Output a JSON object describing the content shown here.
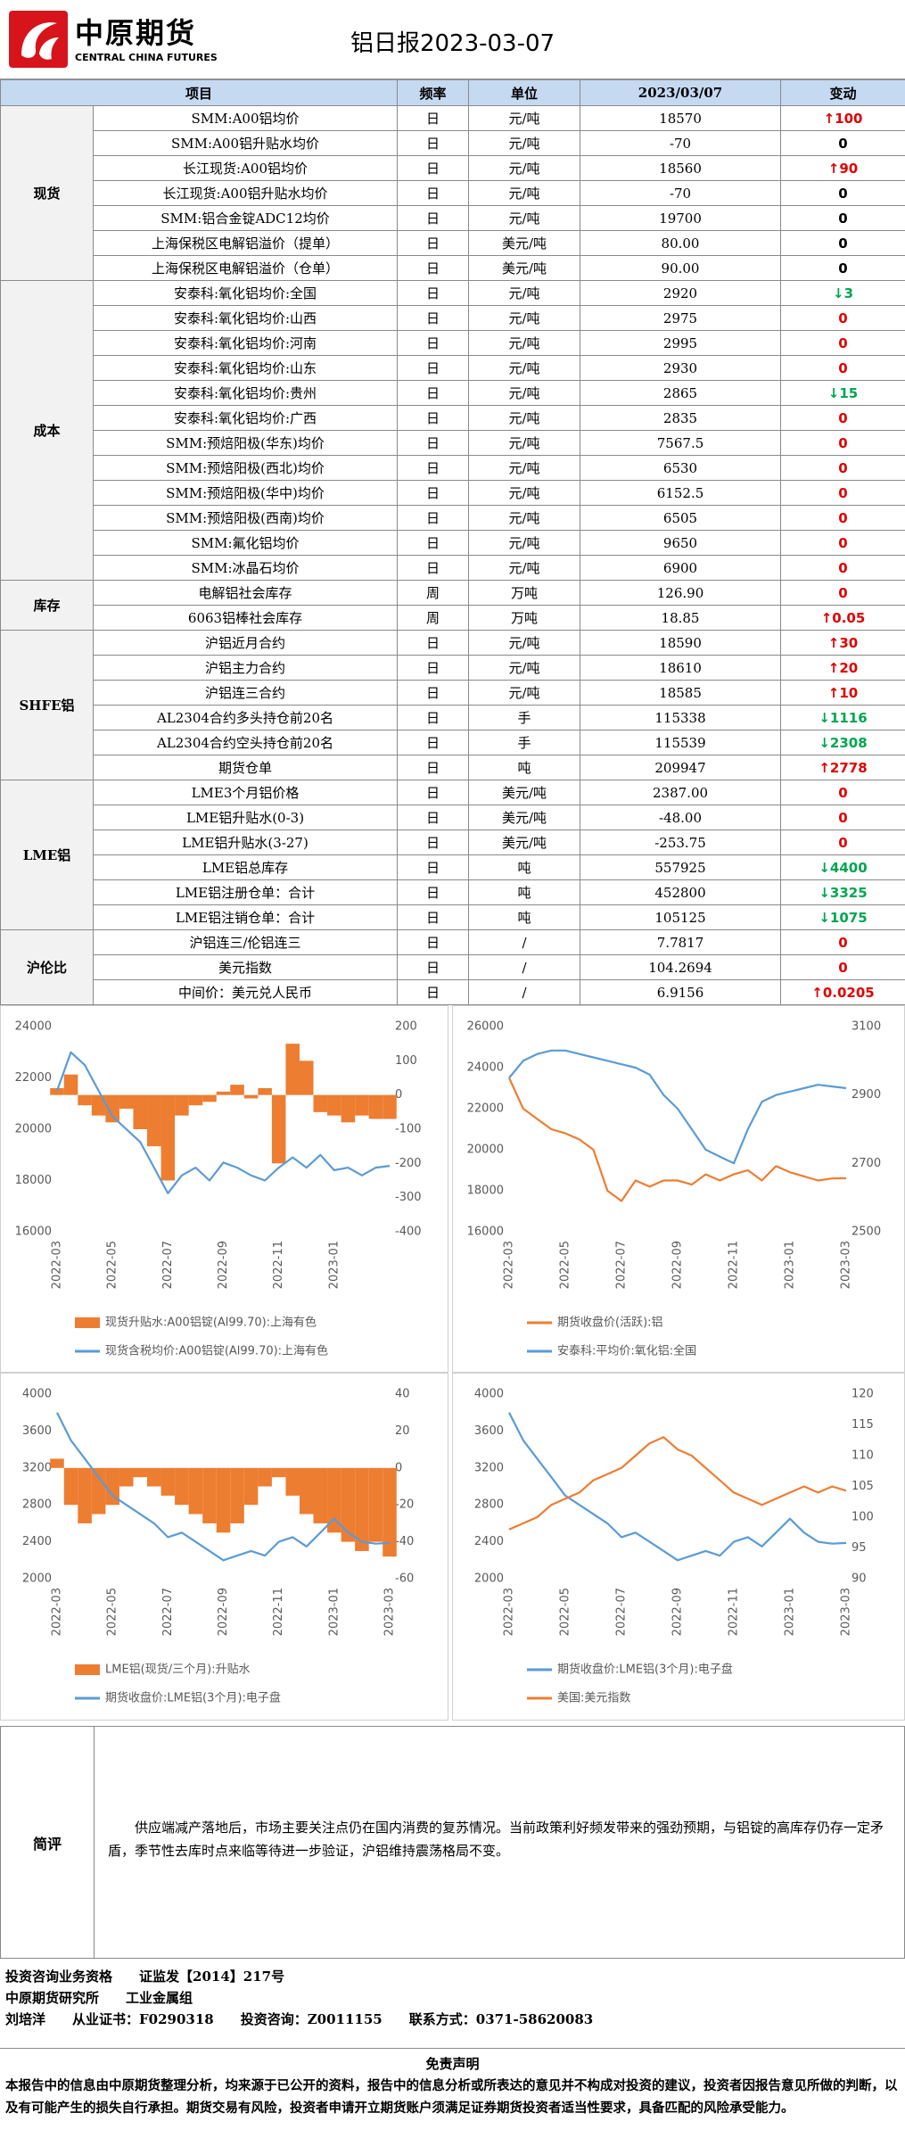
{
  "header": {
    "logo_cn": "中原期货",
    "logo_en": "CENTRAL CHINA FUTURES",
    "title": "铝日报2023-03-07"
  },
  "table": {
    "columns": [
      "项目",
      "频率",
      "单位",
      "2023/03/07",
      "变动"
    ],
    "groups": [
      {
        "name": "现货",
        "rows": [
          {
            "item": "SMM:A00铝均价",
            "freq": "日",
            "unit": "元/吨",
            "value": "18570",
            "change": "↑100",
            "change_color": "#e00000"
          },
          {
            "item": "SMM:A00铝升贴水均价",
            "freq": "日",
            "unit": "元/吨",
            "value": "-70",
            "change": "0",
            "change_color": "#000000"
          },
          {
            "item": "长江现货:A00铝均价",
            "freq": "日",
            "unit": "元/吨",
            "value": "18560",
            "change": "↑90",
            "change_color": "#e00000"
          },
          {
            "item": "长江现货:A00铝升贴水均价",
            "freq": "日",
            "unit": "元/吨",
            "value": "-70",
            "change": "0",
            "change_color": "#000000"
          },
          {
            "item": "SMM:铝合金锭ADC12均价",
            "freq": "日",
            "unit": "元/吨",
            "value": "19700",
            "change": "0",
            "change_color": "#000000"
          },
          {
            "item": "上海保税区电解铝溢价（提单）",
            "freq": "日",
            "unit": "美元/吨",
            "value": "80.00",
            "change": "0",
            "change_color": "#000000"
          },
          {
            "item": "上海保税区电解铝溢价（仓单）",
            "freq": "日",
            "unit": "美元/吨",
            "value": "90.00",
            "change": "0",
            "change_color": "#000000"
          }
        ]
      },
      {
        "name": "成本",
        "rows": [
          {
            "item": "安泰科:氧化铝均价:全国",
            "freq": "日",
            "unit": "元/吨",
            "value": "2920",
            "change": "↓3",
            "change_color": "#00a650"
          },
          {
            "item": "安泰科:氧化铝均价:山西",
            "freq": "日",
            "unit": "元/吨",
            "value": "2975",
            "change": "0",
            "change_color": "#e00000"
          },
          {
            "item": "安泰科:氧化铝均价:河南",
            "freq": "日",
            "unit": "元/吨",
            "value": "2995",
            "change": "0",
            "change_color": "#e00000"
          },
          {
            "item": "安泰科:氧化铝均价:山东",
            "freq": "日",
            "unit": "元/吨",
            "value": "2930",
            "change": "0",
            "change_color": "#e00000"
          },
          {
            "item": "安泰科:氧化铝均价:贵州",
            "freq": "日",
            "unit": "元/吨",
            "value": "2865",
            "change": "↓15",
            "change_color": "#00a650"
          },
          {
            "item": "安泰科:氧化铝均价:广西",
            "freq": "日",
            "unit": "元/吨",
            "value": "2835",
            "change": "0",
            "change_color": "#e00000"
          },
          {
            "item": "SMM:预焙阳极(华东)均价",
            "freq": "日",
            "unit": "元/吨",
            "value": "7567.5",
            "change": "0",
            "change_color": "#e00000"
          },
          {
            "item": "SMM:预焙阳极(西北)均价",
            "freq": "日",
            "unit": "元/吨",
            "value": "6530",
            "change": "0",
            "change_color": "#e00000"
          },
          {
            "item": "SMM:预焙阳极(华中)均价",
            "freq": "日",
            "unit": "元/吨",
            "value": "6152.5",
            "change": "0",
            "change_color": "#e00000"
          },
          {
            "item": "SMM:预焙阳极(西南)均价",
            "freq": "日",
            "unit": "元/吨",
            "value": "6505",
            "change": "0",
            "change_color": "#e00000"
          },
          {
            "item": "SMM:氟化铝均价",
            "freq": "日",
            "unit": "元/吨",
            "value": "9650",
            "change": "0",
            "change_color": "#e00000"
          },
          {
            "item": "SMM:冰晶石均价",
            "freq": "日",
            "unit": "元/吨",
            "value": "6900",
            "change": "0",
            "change_color": "#e00000"
          }
        ]
      },
      {
        "name": "库存",
        "rows": [
          {
            "item": "电解铝社会库存",
            "freq": "周",
            "unit": "万吨",
            "value": "126.90",
            "change": "0",
            "change_color": "#e00000"
          },
          {
            "item": "6063铝棒社会库存",
            "freq": "周",
            "unit": "万吨",
            "value": "18.85",
            "change": "↑0.05",
            "change_color": "#e00000"
          }
        ]
      },
      {
        "name": "SHFE铝",
        "rows": [
          {
            "item": "沪铝近月合约",
            "freq": "日",
            "unit": "元/吨",
            "value": "18590",
            "change": "↑30",
            "change_color": "#e00000"
          },
          {
            "item": "沪铝主力合约",
            "freq": "日",
            "unit": "元/吨",
            "value": "18610",
            "change": "↑20",
            "change_color": "#e00000"
          },
          {
            "item": "沪铝连三合约",
            "freq": "日",
            "unit": "元/吨",
            "value": "18585",
            "change": "↑10",
            "change_color": "#e00000"
          },
          {
            "item": "AL2304合约多头持仓前20名",
            "freq": "日",
            "unit": "手",
            "value": "115338",
            "change": "↓1116",
            "change_color": "#00a650"
          },
          {
            "item": "AL2304合约空头持仓前20名",
            "freq": "日",
            "unit": "手",
            "value": "115539",
            "change": "↓2308",
            "change_color": "#00a650"
          },
          {
            "item": "期货仓单",
            "freq": "日",
            "unit": "吨",
            "value": "209947",
            "change": "↑2778",
            "change_color": "#e00000"
          }
        ]
      },
      {
        "name": "LME铝",
        "rows": [
          {
            "item": "LME3个月铝价格",
            "freq": "日",
            "unit": "美元/吨",
            "value": "2387.00",
            "change": "0",
            "change_color": "#e00000"
          },
          {
            "item": "LME铝升贴水(0-3)",
            "freq": "日",
            "unit": "美元/吨",
            "value": "-48.00",
            "change": "0",
            "change_color": "#e00000"
          },
          {
            "item": "LME铝升贴水(3-27)",
            "freq": "日",
            "unit": "美元/吨",
            "value": "-253.75",
            "change": "0",
            "change_color": "#e00000"
          },
          {
            "item": "LME铝总库存",
            "freq": "日",
            "unit": "吨",
            "value": "557925",
            "change": "↓4400",
            "change_color": "#00a650"
          },
          {
            "item": "LME铝注册仓单：合计",
            "freq": "日",
            "unit": "吨",
            "value": "452800",
            "change": "↓3325",
            "change_color": "#00a650"
          },
          {
            "item": "LME铝注销仓单：合计",
            "freq": "日",
            "unit": "吨",
            "value": "105125",
            "change": "↓1075",
            "change_color": "#00a650"
          }
        ]
      },
      {
        "name": "沪伦比",
        "rows": [
          {
            "item": "沪铝连三/伦铝连三",
            "freq": "日",
            "unit": "/",
            "value": "7.7817",
            "change": "0",
            "change_color": "#e00000"
          },
          {
            "item": "美元指数",
            "freq": "日",
            "unit": "/",
            "value": "104.2694",
            "change": "0",
            "change_color": "#e00000"
          },
          {
            "item": "中间价：美元兑人民币",
            "freq": "日",
            "unit": "/",
            "value": "6.9156",
            "change": "↑0.0205",
            "change_color": "#e00000"
          }
        ]
      }
    ]
  },
  "chart_data": [
    {
      "type": "line",
      "categories": [
        "2022-03",
        null,
        null,
        null,
        "2022-05",
        null,
        null,
        null,
        "2022-07",
        null,
        null,
        null,
        "2022-09",
        null,
        null,
        null,
        "2022-11",
        null,
        null,
        null,
        "2023-01",
        null,
        null,
        null,
        null
      ],
      "ylim": [
        16000,
        24000
      ],
      "yticks": [
        16000,
        18000,
        20000,
        22000,
        24000
      ],
      "y2lim": [
        -400,
        200
      ],
      "y2ticks": [
        -400,
        -300,
        -200,
        -100,
        0,
        100,
        200
      ],
      "series": [
        {
          "name": "现货升贴水:A00铝锭(Al99.70):上海有色",
          "color": "#ed7d31",
          "style": "bar",
          "axis": "y2",
          "values": [
            20,
            60,
            -30,
            -60,
            -80,
            -40,
            -100,
            -150,
            -250,
            -60,
            -30,
            -20,
            10,
            30,
            -10,
            20,
            -200,
            150,
            100,
            -50,
            -60,
            -80,
            -60,
            -70,
            -70
          ]
        },
        {
          "name": "现货含税均价:A00铝锭(Al99.70):上海有色",
          "color": "#5b9bd5",
          "style": "line",
          "values": [
            21500,
            23000,
            22500,
            21500,
            20500,
            20000,
            19500,
            18500,
            17500,
            18200,
            18500,
            18000,
            18700,
            18500,
            18200,
            18000,
            18500,
            18900,
            18500,
            19000,
            18400,
            18500,
            18200,
            18500,
            18570
          ]
        }
      ]
    },
    {
      "type": "line",
      "categories": [
        "2022-03",
        null,
        null,
        null,
        "2022-05",
        null,
        null,
        null,
        "2022-07",
        null,
        null,
        null,
        "2022-09",
        null,
        null,
        null,
        "2022-11",
        null,
        null,
        null,
        "2023-01",
        null,
        null,
        null,
        "2023-03"
      ],
      "ylim": [
        16000,
        26000
      ],
      "yticks": [
        16000,
        18000,
        20000,
        22000,
        24000,
        26000
      ],
      "y2lim": [
        2500,
        3100
      ],
      "y2ticks": [
        2500,
        2700,
        2900,
        3100
      ],
      "series": [
        {
          "name": "期货收盘价(活跃):铝",
          "color": "#ed7d31",
          "style": "line",
          "values": [
            23500,
            22000,
            21500,
            21000,
            20800,
            20500,
            20000,
            18000,
            17500,
            18500,
            18200,
            18500,
            18500,
            18300,
            18800,
            18500,
            18800,
            19000,
            18500,
            19200,
            18900,
            18700,
            18500,
            18600,
            18610
          ]
        },
        {
          "name": "安泰科:平均价:氧化铝:全国",
          "color": "#5b9bd5",
          "style": "line",
          "axis": "y2",
          "values": [
            2950,
            3000,
            3020,
            3030,
            3030,
            3020,
            3010,
            3000,
            2990,
            2980,
            2960,
            2900,
            2860,
            2800,
            2740,
            2720,
            2700,
            2800,
            2880,
            2900,
            2910,
            2920,
            2930,
            2925,
            2920
          ]
        }
      ]
    },
    {
      "type": "line",
      "categories": [
        "2022-03",
        null,
        null,
        null,
        "2022-05",
        null,
        null,
        null,
        "2022-07",
        null,
        null,
        null,
        "2022-09",
        null,
        null,
        null,
        "2022-11",
        null,
        null,
        null,
        "2023-01",
        null,
        null,
        null,
        "2023-03"
      ],
      "ylim": [
        2000,
        4000
      ],
      "yticks": [
        2000,
        2400,
        2800,
        3200,
        3600,
        4000
      ],
      "y2lim": [
        -60,
        40
      ],
      "y2ticks": [
        -60,
        -40,
        -20,
        0,
        20,
        40
      ],
      "series": [
        {
          "name": "LME铝(现货/三个月):升贴水",
          "color": "#ed7d31",
          "style": "bar",
          "axis": "y2",
          "values": [
            5,
            -20,
            -30,
            -25,
            -20,
            -10,
            -5,
            -10,
            -15,
            -20,
            -25,
            -30,
            -35,
            -30,
            -20,
            -10,
            -5,
            -15,
            -25,
            -30,
            -35,
            -40,
            -45,
            -40,
            -48
          ]
        },
        {
          "name": "期货收盘价:LME铝(3个月):电子盘",
          "color": "#5b9bd5",
          "style": "line",
          "values": [
            3800,
            3500,
            3300,
            3100,
            2900,
            2800,
            2700,
            2600,
            2450,
            2500,
            2400,
            2300,
            2200,
            2250,
            2300,
            2250,
            2400,
            2450,
            2350,
            2500,
            2650,
            2500,
            2400,
            2380,
            2387
          ]
        }
      ]
    },
    {
      "type": "line",
      "categories": [
        "2022-03",
        null,
        null,
        null,
        "2022-05",
        null,
        null,
        null,
        "2022-07",
        null,
        null,
        null,
        "2022-09",
        null,
        null,
        null,
        "2022-11",
        null,
        null,
        null,
        "2023-01",
        null,
        null,
        null,
        "2023-03"
      ],
      "ylim": [
        2000,
        4000
      ],
      "yticks": [
        2000,
        2400,
        2800,
        3200,
        3600,
        4000
      ],
      "y2lim": [
        90,
        120
      ],
      "y2ticks": [
        90,
        95,
        100,
        105,
        110,
        115,
        120
      ],
      "series": [
        {
          "name": "期货收盘价:LME铝(3个月):电子盘",
          "color": "#5b9bd5",
          "style": "line",
          "values": [
            3800,
            3500,
            3300,
            3100,
            2900,
            2800,
            2700,
            2600,
            2450,
            2500,
            2400,
            2300,
            2200,
            2250,
            2300,
            2250,
            2400,
            2450,
            2350,
            2500,
            2650,
            2500,
            2400,
            2380,
            2387
          ]
        },
        {
          "name": "美国:美元指数",
          "color": "#ed7d31",
          "style": "line",
          "axis": "y2",
          "values": [
            98,
            99,
            100,
            102,
            103,
            104,
            106,
            107,
            108,
            110,
            112,
            113,
            111,
            110,
            108,
            106,
            104,
            103,
            102,
            103,
            104,
            105,
            104,
            105,
            104.3
          ]
        }
      ]
    }
  ],
  "commentary": {
    "label": "简评",
    "text": "供应端减产落地后，市场主要关注点仍在国内消费的复苏情况。当前政策利好频发带来的强劲预期，与铝锭的高库存仍存一定矛盾，季节性去库时点来临等待进一步验证，沪铝维持震荡格局不变。"
  },
  "footer": {
    "lines": [
      [
        "投资咨询业务资格",
        "证监发【2014】217号"
      ],
      [
        "中原期货研究所",
        "工业金属组"
      ],
      [
        "刘培洋",
        "从业证书：F0290318",
        "投资咨询：Z0011155",
        "联系方式：0371-58620083"
      ]
    ]
  },
  "disclaimer": {
    "title": "免责声明",
    "text": "本报告中的信息由中原期货整理分析，均来源于已公开的资料，报告中的信息分析或所表达的意见并不构成对投资的建议，投资者因报告意见所做的判断，以及有可能产生的损失自行承担。期货交易有风险，投资者申请开立期货账户须满足证券期货投资者适当性要求，具备匹配的风险承受能力。"
  }
}
